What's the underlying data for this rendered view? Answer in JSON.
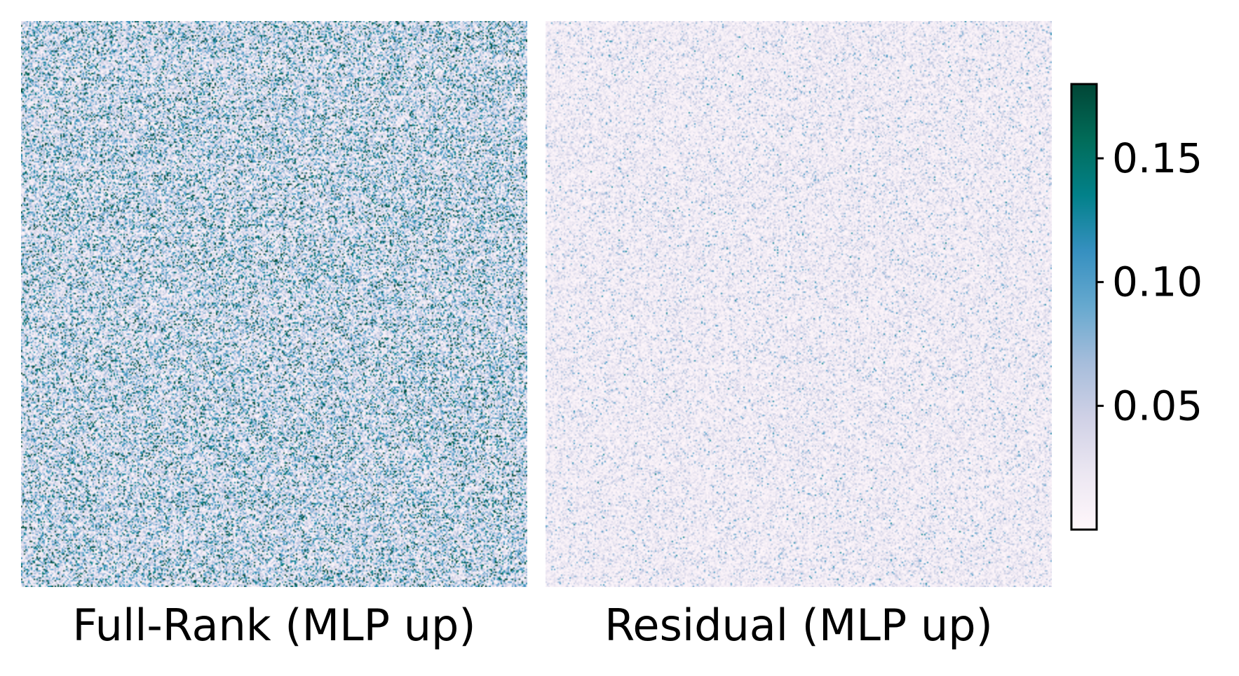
{
  "chart_data": {
    "type": "heatmap",
    "colormap": "PuBuGn",
    "colormap_stops": [
      "#fff7fb",
      "#ece7f2",
      "#d0d1e6",
      "#a6bddb",
      "#67a9cf",
      "#3690c0",
      "#02818a",
      "#016c59",
      "#014636"
    ],
    "vmin": 0.0,
    "vmax": 0.18,
    "colorbar": {
      "ticks": [
        0.05,
        0.1,
        0.15
      ],
      "tick_labels": [
        "0.05",
        "0.10",
        "0.15"
      ],
      "placement": "right"
    },
    "panels": [
      {
        "label": "Full-Rank (MLP up)",
        "approx_mean_value": 0.055,
        "dominant_color": "#a6bddb"
      },
      {
        "label": "Residual (MLP up)",
        "approx_mean_value": 0.02,
        "dominant_color": "#ece7f2"
      }
    ]
  }
}
